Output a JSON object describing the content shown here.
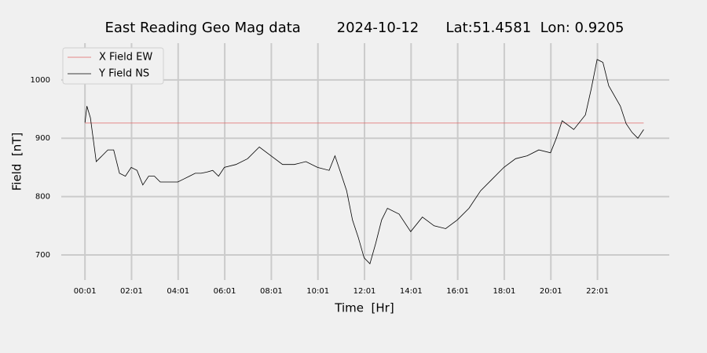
{
  "chart_data": {
    "type": "line",
    "title": "East Reading Geo Mag data        2024-10-12      Lat:51.4581  Lon: 0.9205",
    "xlabel": "Time  [Hr]",
    "ylabel": "Field  [nT]",
    "xlim": [
      -1.0,
      25.1
    ],
    "ylim": [
      657,
      1063
    ],
    "xticks": [
      {
        "value": 0.0167,
        "label": "00:01"
      },
      {
        "value": 2.0167,
        "label": "02:01"
      },
      {
        "value": 4.0167,
        "label": "04:01"
      },
      {
        "value": 6.0167,
        "label": "06:01"
      },
      {
        "value": 8.0167,
        "label": "08:01"
      },
      {
        "value": 10.0167,
        "label": "10:01"
      },
      {
        "value": 12.0167,
        "label": "12:01"
      },
      {
        "value": 14.0167,
        "label": "14:01"
      },
      {
        "value": 16.0167,
        "label": "16:01"
      },
      {
        "value": 18.0167,
        "label": "18:01"
      },
      {
        "value": 20.0167,
        "label": "20:01"
      },
      {
        "value": 22.0167,
        "label": "22:01"
      }
    ],
    "yticks": [
      700,
      800,
      900,
      1000
    ],
    "grid": true,
    "legend": "upper left",
    "series": [
      {
        "name": "X Field EW",
        "color": "#e06666",
        "x": [
          0.0167,
          24.0
        ],
        "values": [
          926,
          926
        ]
      },
      {
        "name": "Y Field NS",
        "color": "#000000",
        "x": [
          0.0167,
          0.1,
          0.25,
          0.5,
          0.75,
          1.0,
          1.25,
          1.5,
          1.75,
          2.0,
          2.25,
          2.5,
          2.75,
          3.0,
          3.25,
          3.5,
          3.75,
          4.0,
          4.25,
          4.5,
          4.75,
          5.0,
          5.25,
          5.5,
          5.75,
          6.0,
          6.5,
          7.0,
          7.5,
          8.0,
          8.5,
          9.0,
          9.5,
          10.0,
          10.5,
          10.75,
          11.0,
          11.25,
          11.5,
          11.75,
          12.0,
          12.25,
          12.5,
          12.75,
          13.0,
          13.5,
          14.0,
          14.5,
          15.0,
          15.5,
          16.0,
          16.5,
          17.0,
          17.5,
          18.0,
          18.5,
          19.0,
          19.5,
          20.0,
          20.25,
          20.5,
          21.0,
          21.5,
          21.75,
          22.0,
          22.25,
          22.5,
          23.0,
          23.25,
          23.5,
          23.75,
          24.0
        ],
        "values": [
          927,
          955,
          935,
          860,
          870,
          880,
          880,
          840,
          835,
          850,
          845,
          820,
          835,
          835,
          825,
          825,
          825,
          825,
          830,
          835,
          840,
          840,
          842,
          845,
          835,
          850,
          855,
          865,
          885,
          870,
          855,
          855,
          860,
          850,
          845,
          870,
          840,
          810,
          760,
          730,
          695,
          685,
          720,
          760,
          780,
          770,
          740,
          765,
          750,
          745,
          760,
          780,
          810,
          830,
          850,
          865,
          870,
          880,
          875,
          900,
          930,
          915,
          940,
          985,
          1035,
          1030,
          990,
          955,
          925,
          910,
          900,
          915
        ]
      }
    ]
  }
}
